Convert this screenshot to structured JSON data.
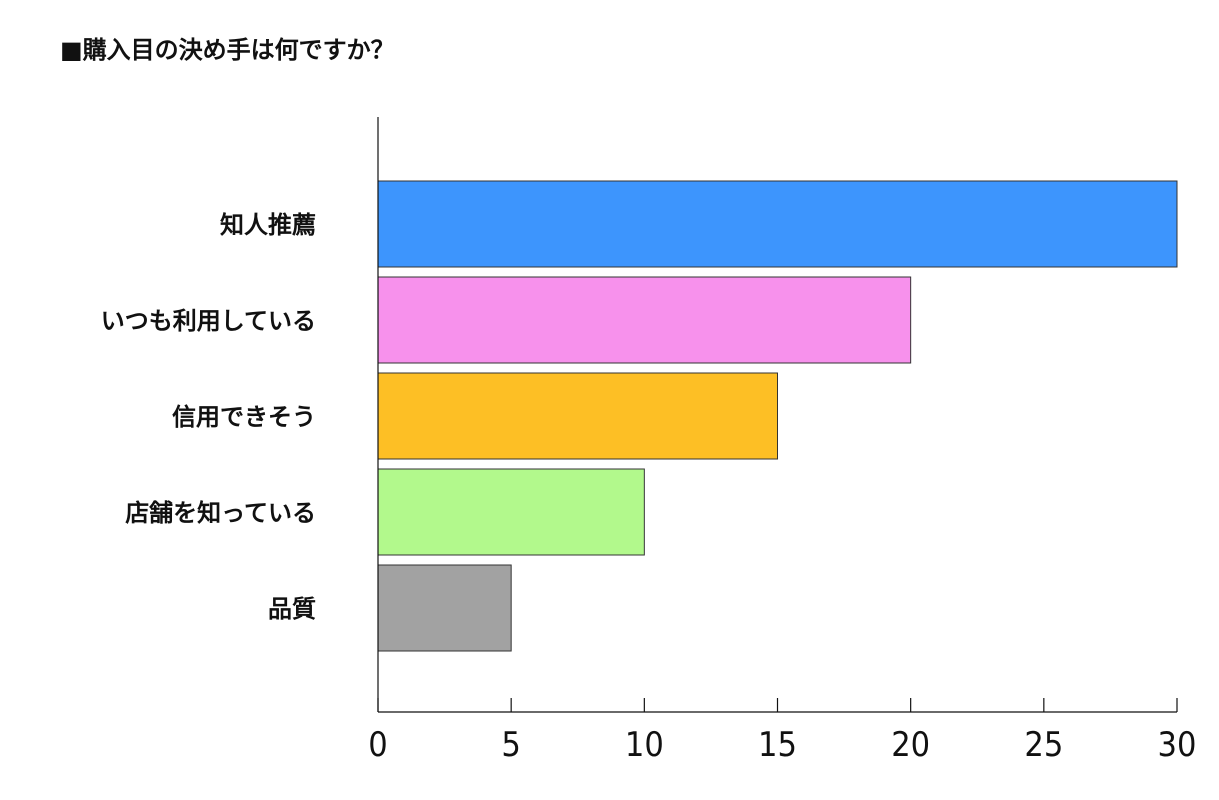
{
  "chart_data": {
    "type": "bar",
    "orientation": "horizontal",
    "title": "■購入目の決め手は何ですか？",
    "categories": [
      "知人推薦",
      "いつも利用している",
      "信用できそう",
      "店舗を知っている",
      "品質"
    ],
    "values": [
      30,
      20,
      15,
      10,
      5
    ],
    "colors": [
      "#3d95fd",
      "#f791ec",
      "#fdbf25",
      "#b2f98c",
      "#a2a2a2"
    ],
    "xlim": [
      0,
      30
    ],
    "xticks": [
      0,
      5,
      10,
      15,
      20,
      25,
      30
    ],
    "xlabel": "",
    "ylabel": "",
    "grid": false,
    "legend": "none"
  }
}
